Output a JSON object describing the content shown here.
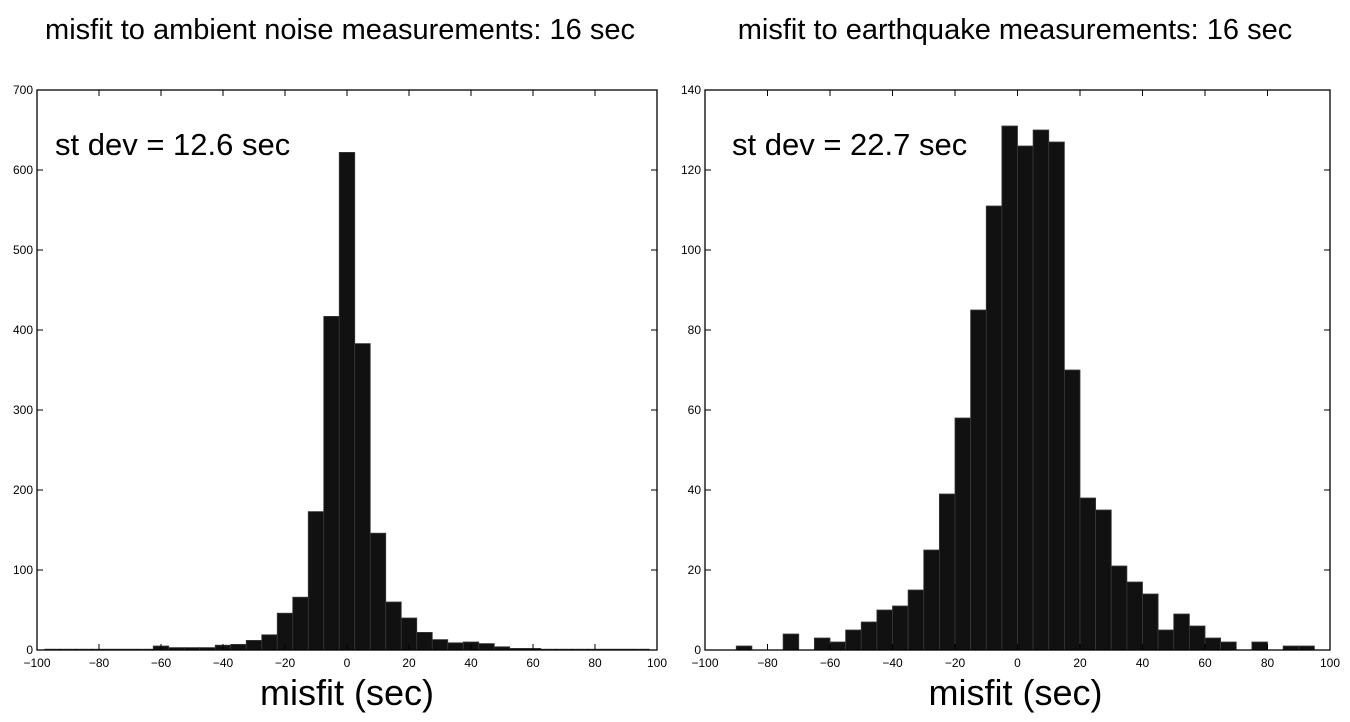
{
  "chart_data": [
    {
      "type": "bar",
      "title": "misfit to ambient noise measurements: 16 sec",
      "xlabel": "misfit (sec)",
      "ylabel": "",
      "annotation": "st dev = 12.6 sec",
      "xlim": [
        -100,
        100
      ],
      "ylim": [
        0,
        700
      ],
      "xticks": [
        -100,
        -80,
        -60,
        -40,
        -20,
        0,
        20,
        40,
        60,
        80,
        100
      ],
      "yticks": [
        0,
        100,
        200,
        300,
        400,
        500,
        600,
        700
      ],
      "bin_width": 5,
      "bins": [
        -95,
        -90,
        -85,
        -80,
        -75,
        -70,
        -65,
        -60,
        -55,
        -50,
        -45,
        -40,
        -35,
        -30,
        -25,
        -20,
        -15,
        -10,
        -5,
        0,
        5,
        10,
        15,
        20,
        25,
        30,
        35,
        40,
        45,
        50,
        55,
        60,
        65,
        70,
        75,
        80,
        85,
        90,
        95
      ],
      "values": [
        1,
        1,
        1,
        1,
        1,
        1,
        1,
        5,
        3,
        3,
        3,
        6,
        7,
        12,
        19,
        46,
        66,
        173,
        417,
        622,
        383,
        146,
        60,
        40,
        22,
        13,
        9,
        10,
        8,
        4,
        2,
        2,
        1,
        1,
        1,
        1,
        1,
        1,
        1
      ],
      "bar_color": "#111111"
    },
    {
      "type": "bar",
      "title": "misfit to earthquake measurements: 16 sec",
      "xlabel": "misfit (sec)",
      "ylabel": "",
      "annotation": "st dev = 22.7 sec",
      "xlim": [
        -100,
        100
      ],
      "ylim": [
        0,
        140
      ],
      "xticks": [
        -100,
        -80,
        -60,
        -40,
        -20,
        0,
        20,
        40,
        60,
        80,
        100
      ],
      "yticks": [
        0,
        20,
        40,
        60,
        80,
        100,
        120,
        140
      ],
      "bin_width": 5,
      "bins": [
        -87.5,
        -82.5,
        -72.5,
        -62.5,
        -57.5,
        -52.5,
        -47.5,
        -42.5,
        -37.5,
        -32.5,
        -27.5,
        -22.5,
        -17.5,
        -12.5,
        -7.5,
        -2.5,
        2.5,
        7.5,
        12.5,
        17.5,
        22.5,
        27.5,
        32.5,
        37.5,
        42.5,
        47.5,
        52.5,
        57.5,
        62.5,
        67.5,
        77.5,
        87.5,
        92.5
      ],
      "values": [
        1,
        0,
        4,
        3,
        2,
        5,
        7,
        10,
        11,
        15,
        25,
        39,
        58,
        85,
        111,
        131,
        126,
        130,
        127,
        70,
        38,
        35,
        21,
        17,
        14,
        5,
        9,
        6,
        3,
        2,
        2,
        1,
        1
      ],
      "bar_color": "#111111"
    }
  ]
}
